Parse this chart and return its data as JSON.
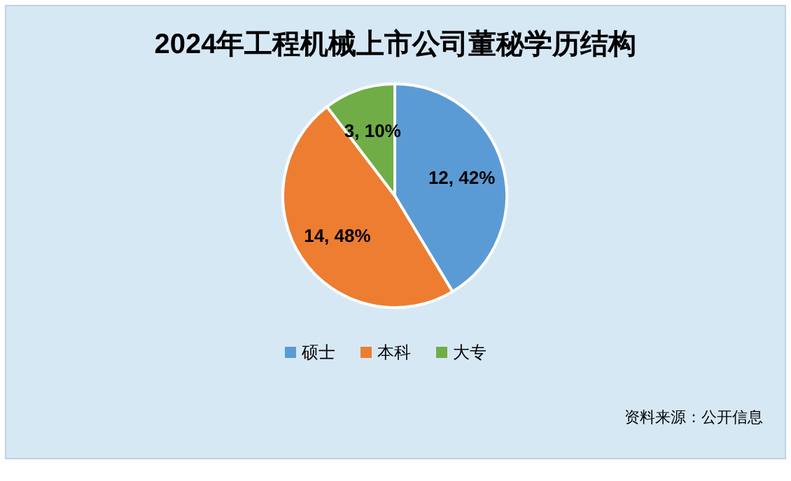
{
  "chart_data": {
    "type": "pie",
    "title": "2024年工程机械上市公司董秘学历结构",
    "categories": [
      "硕士",
      "本科",
      "大专"
    ],
    "values": [
      12,
      14,
      3
    ],
    "colors": [
      "#5b9bd5",
      "#ed7d31",
      "#70ad47"
    ],
    "value_labels": [
      "12, 42%",
      "14, 48%",
      "3, 10%"
    ],
    "legend": "bottom",
    "annotations": [
      "资料来源：公开信息"
    ]
  }
}
